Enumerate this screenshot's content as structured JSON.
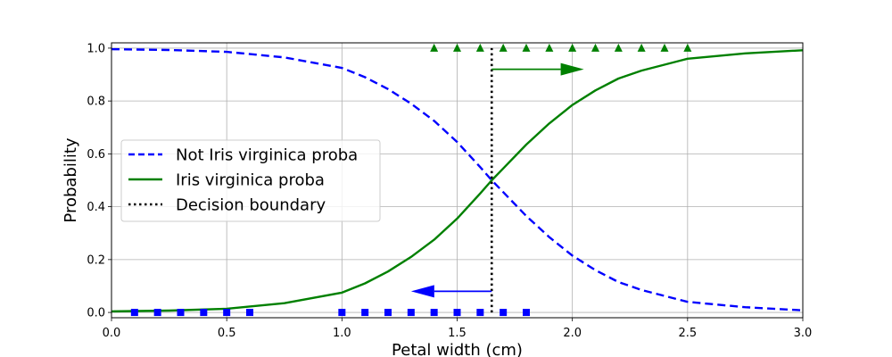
{
  "chart_data": {
    "type": "line",
    "title": "",
    "xlabel": "Petal width (cm)",
    "ylabel": "Probability",
    "xlim": [
      0.0,
      3.0
    ],
    "ylim": [
      -0.02,
      1.02
    ],
    "xticks": [
      "0.0",
      "0.5",
      "1.0",
      "1.5",
      "2.0",
      "2.5",
      "3.0"
    ],
    "yticks": [
      "0.0",
      "0.2",
      "0.4",
      "0.6",
      "0.8",
      "1.0"
    ],
    "grid": true,
    "legend_position": "center-left",
    "decision_boundary": 1.65,
    "series": [
      {
        "name": "Not Iris virginica proba",
        "color": "#0000ff",
        "style": "dashed",
        "x": [
          0.0,
          0.25,
          0.5,
          0.75,
          1.0,
          1.1,
          1.2,
          1.3,
          1.4,
          1.5,
          1.6,
          1.65,
          1.7,
          1.8,
          1.9,
          2.0,
          2.1,
          2.2,
          2.3,
          2.5,
          2.75,
          3.0
        ],
        "y": [
          0.996,
          0.993,
          0.986,
          0.965,
          0.925,
          0.89,
          0.845,
          0.79,
          0.725,
          0.645,
          0.55,
          0.5,
          0.455,
          0.365,
          0.285,
          0.215,
          0.16,
          0.115,
          0.085,
          0.04,
          0.02,
          0.008
        ]
      },
      {
        "name": "Iris virginica proba",
        "color": "#008000",
        "style": "solid",
        "x": [
          0.0,
          0.25,
          0.5,
          0.75,
          1.0,
          1.1,
          1.2,
          1.3,
          1.4,
          1.5,
          1.6,
          1.65,
          1.7,
          1.8,
          1.9,
          2.0,
          2.1,
          2.2,
          2.3,
          2.5,
          2.75,
          3.0
        ],
        "y": [
          0.004,
          0.007,
          0.014,
          0.035,
          0.075,
          0.11,
          0.155,
          0.21,
          0.275,
          0.355,
          0.45,
          0.5,
          0.545,
          0.635,
          0.715,
          0.785,
          0.84,
          0.885,
          0.915,
          0.96,
          0.98,
          0.992
        ]
      },
      {
        "name": "Decision boundary",
        "color": "#000000",
        "style": "dotted"
      }
    ],
    "scatter_not_virginica": {
      "color": "#0000ff",
      "marker": "square",
      "x": [
        0.1,
        0.2,
        0.3,
        0.4,
        0.5,
        0.6,
        1.0,
        1.1,
        1.2,
        1.3,
        1.4,
        1.5,
        1.6,
        1.7,
        1.8
      ],
      "y": [
        0,
        0,
        0,
        0,
        0,
        0,
        0,
        0,
        0,
        0,
        0,
        0,
        0,
        0,
        0
      ]
    },
    "scatter_virginica": {
      "color": "#008000",
      "marker": "triangle",
      "x": [
        1.4,
        1.5,
        1.6,
        1.7,
        1.8,
        1.9,
        2.0,
        2.1,
        2.2,
        2.3,
        2.4,
        2.5
      ],
      "y": [
        1,
        1,
        1,
        1,
        1,
        1,
        1,
        1,
        1,
        1,
        1,
        1
      ]
    },
    "arrows": [
      {
        "color": "#008000",
        "x_start": 1.65,
        "x_end": 2.05,
        "y": 0.92
      },
      {
        "color": "#0000ff",
        "x_start": 1.65,
        "x_end": 1.3,
        "y": 0.08
      }
    ]
  }
}
